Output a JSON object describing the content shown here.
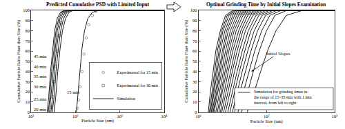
{
  "chart_data": [
    {
      "type": "line",
      "title": "Predicted Cumulative PSD with Limited Input",
      "x_label": "Particle Size (nm)",
      "y_label": "Cumulative Particle Ratio Finer than Size (%)",
      "log": "x",
      "grid": false,
      "legend": "lower right",
      "color": "#000000",
      "xlim": [
        10,
        10000
      ],
      "xticks": [
        {
          "value": 10,
          "label": "10¹"
        },
        {
          "value": 100,
          "label": "10²"
        },
        {
          "value": 1000,
          "label": "10³"
        },
        {
          "value": 10000,
          "label": "10⁴"
        }
      ],
      "ylim": [
        0,
        100
      ],
      "yticks": [
        0,
        10,
        20,
        30,
        40,
        50,
        60,
        70,
        80,
        90,
        100
      ],
      "series": [
        {
          "name": "Experimental for 15 min",
          "type": "scatter",
          "marker": "circle-open",
          "color": "#808080",
          "x": [
            110,
            118,
            128,
            140,
            155,
            175,
            200,
            240,
            290
          ],
          "values": [
            4,
            12,
            25,
            40,
            57,
            73,
            86,
            95,
            99
          ]
        },
        {
          "name": "Experimental for 30 min",
          "type": "scatter",
          "marker": "square-open",
          "color": "#808080",
          "x": [
            29,
            31,
            33,
            35.5,
            38.5,
            42,
            47,
            55
          ],
          "values": [
            5,
            15,
            30,
            45,
            60,
            75,
            88,
            97
          ]
        },
        {
          "name": "Simulation",
          "x": [
            23,
            25,
            27.5,
            30.5,
            34,
            39,
            46,
            56,
            10000
          ],
          "values": [
            0,
            15,
            40,
            62,
            80,
            92,
            98,
            100,
            100
          ]
        },
        {
          "name": "Simulation",
          "x": [
            24.5,
            26.5,
            29,
            32.5,
            36.5,
            42,
            49,
            60,
            10000
          ],
          "values": [
            0,
            15,
            40,
            62,
            80,
            92,
            98,
            100,
            100
          ]
        },
        {
          "name": "Simulation",
          "x": [
            26,
            28,
            31,
            35,
            39,
            45,
            53,
            65,
            10000
          ],
          "values": [
            0,
            15,
            40,
            62,
            80,
            92,
            98,
            100,
            100
          ]
        },
        {
          "name": "Simulation",
          "x": [
            28,
            30.5,
            33.5,
            37.5,
            42.5,
            49,
            58,
            72,
            10000
          ],
          "values": [
            0,
            15,
            40,
            62,
            80,
            92,
            98,
            100,
            100
          ]
        },
        {
          "name": "Simulation",
          "x": [
            30,
            33,
            36.5,
            41,
            46.5,
            54,
            64,
            80,
            10000
          ],
          "values": [
            0,
            15,
            40,
            62,
            80,
            92,
            98,
            100,
            100
          ]
        },
        {
          "name": "Simulation",
          "x": [
            33,
            36,
            40,
            45,
            51,
            60,
            71,
            90,
            10000
          ],
          "values": [
            0,
            15,
            40,
            62,
            80,
            92,
            98,
            100,
            100
          ]
        },
        {
          "name": "Simulation",
          "x": [
            105,
            113,
            125,
            140,
            160,
            190,
            240,
            330,
            10000
          ],
          "values": [
            0,
            15,
            40,
            62,
            80,
            92,
            98,
            100,
            100
          ]
        }
      ],
      "annotations": [
        {
          "text": "45 min",
          "x": 10.8,
          "y": 55
        },
        {
          "text": "40 min",
          "x": 10.8,
          "y": 45
        },
        {
          "text": "35 min",
          "x": 10.8,
          "y": 35
        },
        {
          "text": "30 min",
          "x": 10.8,
          "y": 25
        },
        {
          "text": "25 min",
          "x": 10.8,
          "y": 13
        },
        {
          "text": "20 min",
          "x": 10.8,
          "y": 3
        },
        {
          "text": "15 min",
          "x": 60,
          "y": 20
        }
      ]
    },
    {
      "type": "line",
      "title": "Optimal Grinding Time by Initial Slopes Examination",
      "x_label": "Particle Size (nm)",
      "y_label": "Cumulative Particle Ratio Finer than Size (%)",
      "log": "x",
      "grid": false,
      "color": "#000000",
      "xlim": [
        10,
        1000
      ],
      "xticks": [
        {
          "value": 10,
          "label": "10¹"
        },
        {
          "value": 100,
          "label": "10²"
        },
        {
          "value": 1000,
          "label": "10³"
        }
      ],
      "ylim": [
        0,
        100
      ],
      "yticks": [
        0,
        10,
        20,
        30,
        40,
        50,
        60,
        70,
        80,
        90,
        100
      ],
      "series": [
        {
          "x": [
            14,
            15,
            16.5,
            18,
            21,
            25,
            32,
            1000
          ],
          "values": [
            0,
            20,
            40,
            60,
            80,
            95,
            100,
            100
          ]
        },
        {
          "x": [
            14.5,
            15.8,
            17.3,
            19,
            22,
            26.5,
            34,
            1000
          ],
          "values": [
            0,
            20,
            40,
            60,
            80,
            95,
            100,
            100
          ]
        },
        {
          "x": [
            15,
            16.5,
            18,
            20,
            23,
            28,
            36,
            1000
          ],
          "values": [
            0,
            20,
            40,
            60,
            80,
            95,
            100,
            100
          ]
        },
        {
          "x": [
            15.5,
            17,
            19,
            21,
            24.5,
            30,
            38,
            1000
          ],
          "values": [
            0,
            20,
            40,
            60,
            80,
            95,
            100,
            100
          ]
        },
        {
          "x": [
            16,
            17.8,
            20,
            22.5,
            26,
            32,
            41,
            1000
          ],
          "values": [
            0,
            20,
            40,
            60,
            80,
            95,
            100,
            100
          ]
        },
        {
          "x": [
            16.5,
            18.5,
            21,
            23.5,
            27.5,
            34,
            44,
            1000
          ],
          "values": [
            0,
            20,
            40,
            60,
            80,
            95,
            100,
            100
          ]
        },
        {
          "x": [
            17,
            19.5,
            22,
            25,
            29.5,
            36.5,
            48,
            1000
          ],
          "values": [
            0,
            20,
            40,
            60,
            80,
            95,
            100,
            100
          ]
        },
        {
          "x": [
            18,
            20.5,
            23,
            26.5,
            31.5,
            39,
            52,
            1000
          ],
          "values": [
            0,
            20,
            40,
            60,
            80,
            95,
            100,
            100
          ]
        },
        {
          "x": [
            19,
            21.5,
            24.5,
            28,
            33.5,
            42,
            56,
            1000
          ],
          "values": [
            0,
            20,
            40,
            60,
            80,
            95,
            100,
            100
          ]
        },
        {
          "x": [
            20,
            22.5,
            26,
            30,
            36,
            45,
            61,
            1000
          ],
          "values": [
            0,
            20,
            40,
            60,
            80,
            95,
            100,
            100
          ]
        },
        {
          "x": [
            21,
            24,
            27.5,
            32,
            39,
            49,
            67,
            1000
          ],
          "values": [
            0,
            20,
            40,
            60,
            80,
            95,
            100,
            100
          ]
        },
        {
          "x": [
            22,
            25.5,
            29.5,
            34.5,
            42,
            53,
            73,
            1000
          ],
          "values": [
            0,
            20,
            40,
            60,
            80,
            95,
            100,
            100
          ]
        },
        {
          "x": [
            23.5,
            27,
            31.5,
            37,
            45,
            58,
            80,
            1000
          ],
          "values": [
            0,
            20,
            40,
            60,
            80,
            95,
            100,
            100
          ]
        },
        {
          "x": [
            25,
            29,
            34,
            40,
            49,
            63,
            88,
            1000
          ],
          "values": [
            0,
            20,
            40,
            60,
            80,
            95,
            100,
            100
          ]
        },
        {
          "x": [
            27,
            31.5,
            37,
            44,
            54,
            70,
            98,
            1000
          ],
          "values": [
            0,
            20,
            40,
            60,
            80,
            95,
            100,
            100
          ]
        },
        {
          "x": [
            29,
            34,
            40,
            48,
            59,
            77,
            110,
            1000
          ],
          "values": [
            0,
            20,
            40,
            60,
            80,
            95,
            100,
            100
          ]
        },
        {
          "x": [
            31.5,
            37,
            44,
            53,
            66,
            86,
            125,
            1000
          ],
          "values": [
            0,
            20,
            40,
            60,
            80,
            95,
            100,
            100
          ]
        },
        {
          "x": [
            34,
            41,
            49,
            59,
            74,
            97,
            142,
            1000
          ],
          "values": [
            0,
            20,
            40,
            60,
            80,
            95,
            100,
            100
          ]
        },
        {
          "x": [
            38,
            46,
            55,
            67,
            85,
            112,
            165,
            1000
          ],
          "values": [
            0,
            20,
            40,
            60,
            80,
            95,
            100,
            100
          ]
        },
        {
          "x": [
            43,
            53,
            64,
            78,
            100,
            133,
            200,
            1000
          ],
          "values": [
            0,
            20,
            40,
            60,
            80,
            95,
            100,
            100
          ]
        },
        {
          "x": [
            52,
            66,
            82,
            103,
            138,
            195,
            340,
            1000
          ],
          "values": [
            0,
            20,
            40,
            60,
            80,
            95,
            100,
            100
          ]
        }
      ],
      "annotations": [
        {
          "text": "Initial Slopes",
          "x": 60,
          "y": 40,
          "text_x": 150,
          "text_y": 58
        }
      ],
      "box": {
        "x": [
          14,
          70
        ],
        "y": [
          0,
          40
        ],
        "line_style": "dash"
      },
      "note": [
        "Simulation for grinding times in",
        "the range of 15~35 min with 1 min",
        "interval, from left to right"
      ]
    }
  ]
}
